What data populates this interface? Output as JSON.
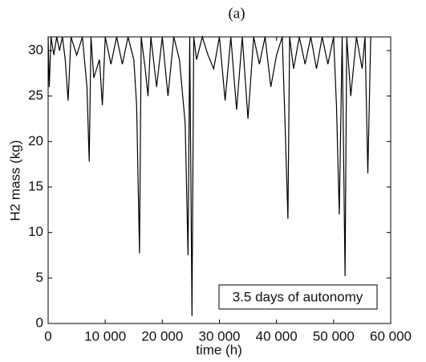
{
  "chart_data": {
    "type": "line",
    "title": "(a)",
    "x_label": "time (h)",
    "y_label": "H2 mass (kg)",
    "annotation": "3.5 days of autonomy",
    "color": "#000000",
    "x": [
      0,
      200,
      500,
      1000,
      1500,
      2000,
      2500,
      3000,
      3500,
      4000,
      5000,
      6000,
      6800,
      7200,
      7500,
      8000,
      9000,
      9500,
      10000,
      11000,
      12000,
      13000,
      14000,
      15000,
      15500,
      16000,
      16300,
      17000,
      17500,
      18000,
      19000,
      20000,
      21000,
      22000,
      23000,
      24000,
      24500,
      24800,
      25200,
      25500,
      26000,
      27000,
      28000,
      29000,
      30000,
      31000,
      32000,
      33000,
      34000,
      35000,
      36000,
      37000,
      38000,
      39000,
      40000,
      41000,
      41500,
      42000,
      42300,
      43000,
      44000,
      45000,
      46000,
      47000,
      48000,
      49000,
      50000,
      50500,
      51000,
      51500,
      52000,
      52300,
      53000,
      54000,
      55000,
      55500,
      56000,
      56500
    ],
    "values": [
      31.5,
      26,
      31.5,
      29.5,
      31.5,
      30,
      31.5,
      29,
      24.5,
      31.5,
      29.5,
      31.5,
      26,
      17.8,
      31.5,
      27,
      29,
      24,
      31.5,
      28.5,
      31.5,
      28.5,
      31.5,
      29,
      24,
      7.7,
      31.5,
      28,
      25,
      31.5,
      26,
      31.5,
      25,
      31.5,
      29,
      22,
      7.5,
      31.5,
      0.8,
      31.5,
      29,
      31.5,
      29.5,
      28,
      31.5,
      24.5,
      31.5,
      23.5,
      31.5,
      22.5,
      31.5,
      28.5,
      31.5,
      26,
      29.5,
      31.5,
      22,
      11.5,
      31.5,
      28,
      31.5,
      28.5,
      31.5,
      28,
      31.5,
      28.5,
      31.5,
      24,
      12,
      31.5,
      5.2,
      31.5,
      25,
      31.5,
      28,
      31.5,
      16.5,
      31.5
    ],
    "xlim": [
      0,
      60000
    ],
    "ylim": [
      0,
      31.5
    ],
    "xticks": [
      0,
      {
        "value": 10000,
        "label": "10 000"
      },
      {
        "value": 20000,
        "label": "20 000"
      },
      {
        "value": 30000,
        "label": "30 000"
      },
      {
        "value": 40000,
        "label": "40 000"
      },
      {
        "value": 50000,
        "label": "50 000"
      },
      {
        "value": 60000,
        "label": "60 000"
      }
    ],
    "yticks": [
      0,
      5,
      10,
      15,
      20,
      25,
      30
    ]
  }
}
